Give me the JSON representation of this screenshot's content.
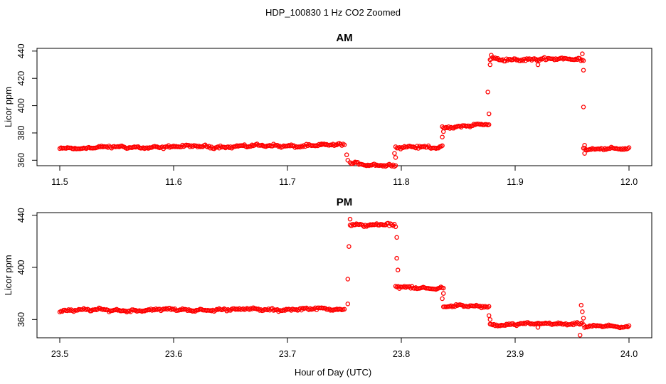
{
  "figure": {
    "title": "HDP_100830  1 Hz CO2 Zoomed",
    "xlabel": "Hour of Day (UTC)",
    "point_color": "#ff0000"
  },
  "chart_data": [
    {
      "type": "scatter",
      "title": "AM",
      "ylabel": "Licor ppm",
      "xlim": [
        11.5,
        12.0
      ],
      "ylim": [
        356,
        442
      ],
      "xticks": [
        "11.5",
        "11.6",
        "11.7",
        "11.8",
        "11.9",
        "12.0"
      ],
      "xtick_values": [
        11.5,
        11.6,
        11.7,
        11.8,
        11.9,
        12.0
      ],
      "yticks": [
        "360",
        "380",
        "400",
        "420",
        "440"
      ],
      "ytick_values": [
        360,
        380,
        400,
        420,
        440
      ],
      "marker": "open-circle",
      "series": [
        {
          "segments": [
            {
              "x": [
                11.5,
                11.75
              ],
              "y": [
                369,
                371
              ],
              "noise": 0.7
            },
            {
              "x": [
                11.755,
                11.795
              ],
              "y": [
                358,
                356
              ],
              "noise": 0.7
            },
            {
              "x": [
                11.795,
                11.836
              ],
              "y": [
                369,
                370
              ],
              "noise": 0.7
            },
            {
              "x": [
                11.836,
                11.877
              ],
              "y": [
                384,
                386
              ],
              "noise": 0.7
            },
            {
              "x": [
                11.878,
                11.96
              ],
              "y": [
                434,
                434
              ],
              "noise": 0.8
            },
            {
              "x": [
                11.96,
                12.0
              ],
              "y": [
                369,
                368
              ],
              "noise": 0.7
            }
          ],
          "outliers": [
            {
              "x": 11.752,
              "y": 364
            },
            {
              "x": 11.753,
              "y": 360
            },
            {
              "x": 11.794,
              "y": 365
            },
            {
              "x": 11.795,
              "y": 362
            },
            {
              "x": 11.836,
              "y": 377
            },
            {
              "x": 11.837,
              "y": 381
            },
            {
              "x": 11.877,
              "y": 394
            },
            {
              "x": 11.876,
              "y": 410
            },
            {
              "x": 11.878,
              "y": 430
            },
            {
              "x": 11.879,
              "y": 437
            },
            {
              "x": 11.959,
              "y": 438
            },
            {
              "x": 11.96,
              "y": 426
            },
            {
              "x": 11.96,
              "y": 399
            },
            {
              "x": 11.961,
              "y": 371
            },
            {
              "x": 11.961,
              "y": 365
            },
            {
              "x": 11.92,
              "y": 430
            },
            {
              "x": 11.73,
              "y": 372
            }
          ]
        }
      ]
    },
    {
      "type": "scatter",
      "title": "PM",
      "ylabel": "Licor ppm",
      "xlim": [
        23.5,
        24.0
      ],
      "ylim": [
        346,
        442
      ],
      "xticks": [
        "23.5",
        "23.6",
        "23.7",
        "23.8",
        "23.9",
        "24.0"
      ],
      "xtick_values": [
        23.5,
        23.6,
        23.7,
        23.8,
        23.9,
        24.0
      ],
      "yticks": [
        "360",
        "400",
        "440"
      ],
      "ytick_values": [
        360,
        400,
        440
      ],
      "marker": "open-circle",
      "series": [
        {
          "segments": [
            {
              "x": [
                23.5,
                23.75
              ],
              "y": [
                367,
                368
              ],
              "noise": 0.7
            },
            {
              "x": [
                23.755,
                23.795
              ],
              "y": [
                433,
                432
              ],
              "noise": 0.8
            },
            {
              "x": [
                23.795,
                23.837
              ],
              "y": [
                385,
                384
              ],
              "noise": 0.7
            },
            {
              "x": [
                23.837,
                23.877
              ],
              "y": [
                370,
                370
              ],
              "noise": 0.7
            },
            {
              "x": [
                23.878,
                23.96
              ],
              "y": [
                356,
                357
              ],
              "noise": 0.7
            },
            {
              "x": [
                23.961,
                24.0
              ],
              "y": [
                355,
                354
              ],
              "noise": 0.6
            }
          ],
          "outliers": [
            {
              "x": 23.753,
              "y": 372
            },
            {
              "x": 23.753,
              "y": 391
            },
            {
              "x": 23.754,
              "y": 416
            },
            {
              "x": 23.755,
              "y": 437
            },
            {
              "x": 23.796,
              "y": 423
            },
            {
              "x": 23.796,
              "y": 407
            },
            {
              "x": 23.797,
              "y": 398
            },
            {
              "x": 23.836,
              "y": 376
            },
            {
              "x": 23.837,
              "y": 380
            },
            {
              "x": 23.877,
              "y": 363
            },
            {
              "x": 23.878,
              "y": 360
            },
            {
              "x": 23.958,
              "y": 371
            },
            {
              "x": 23.959,
              "y": 366
            },
            {
              "x": 23.96,
              "y": 361
            },
            {
              "x": 23.957,
              "y": 348
            },
            {
              "x": 23.92,
              "y": 354
            }
          ]
        }
      ]
    }
  ]
}
